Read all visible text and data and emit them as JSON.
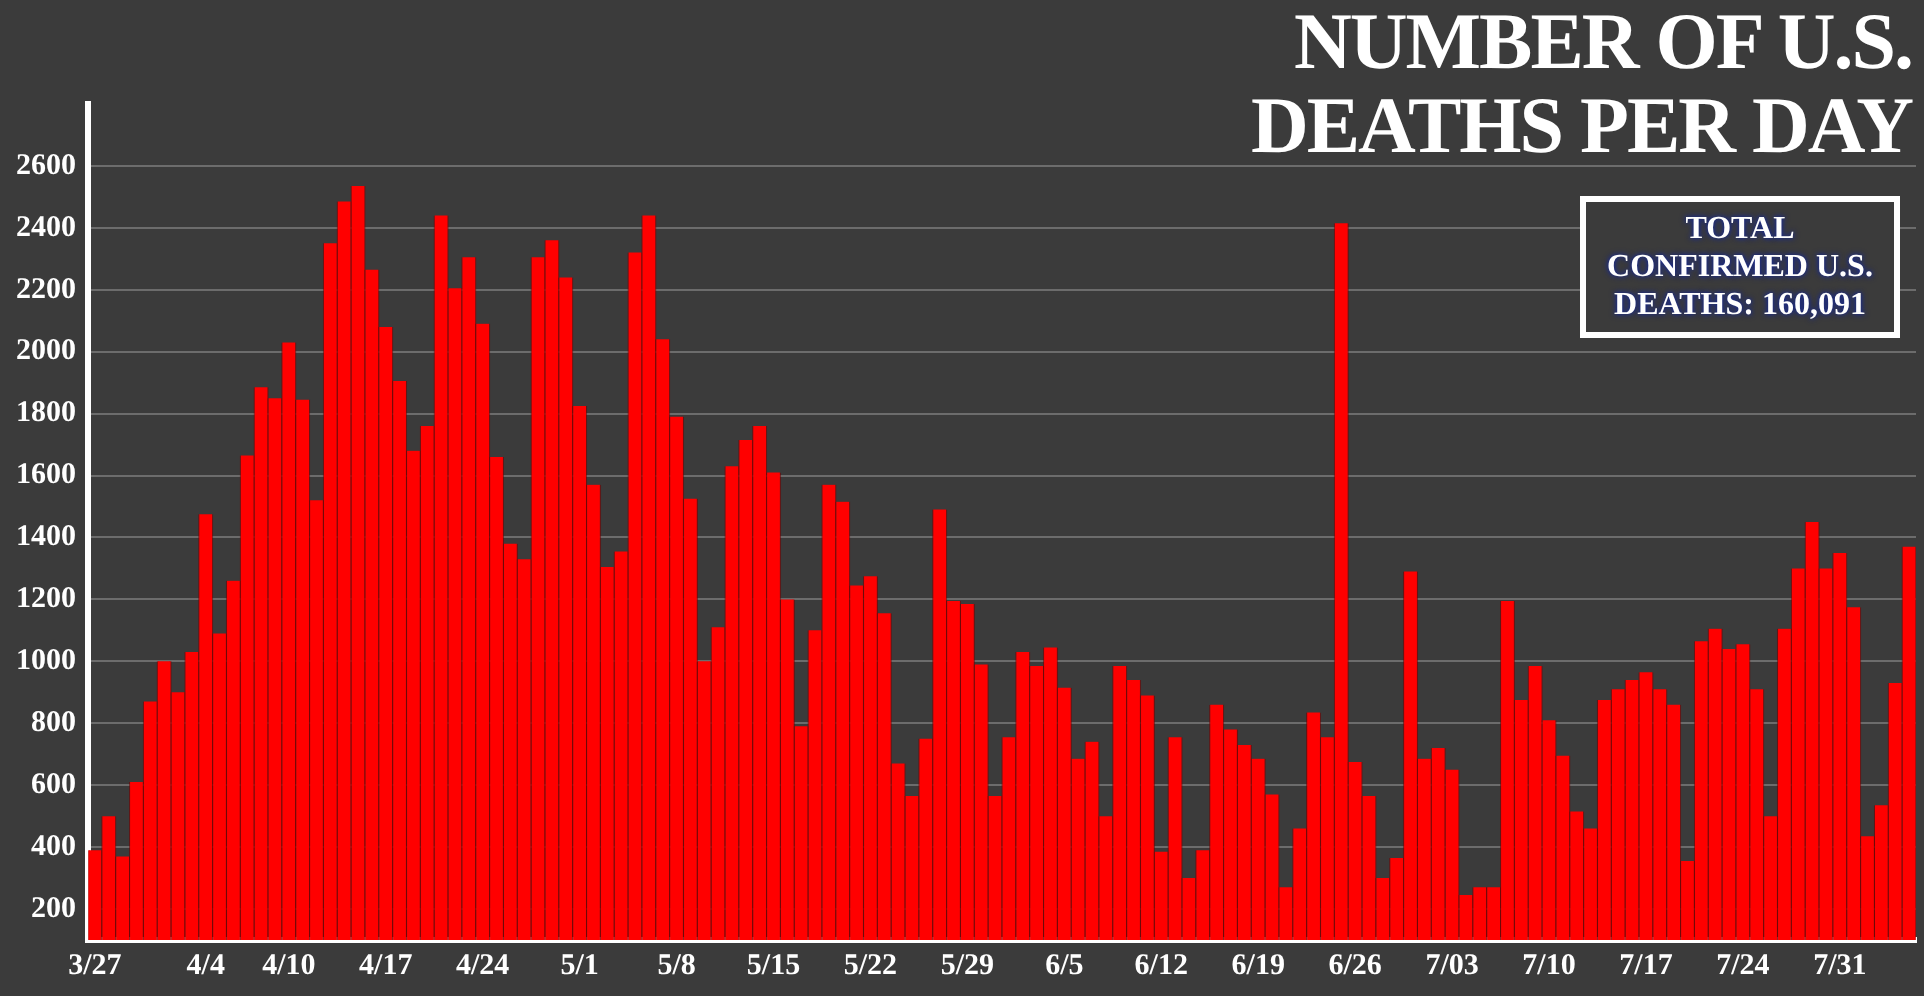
{
  "chart_data": {
    "type": "bar",
    "title": "NUMBER OF U.S. DEATHS PER DAY",
    "annotations": [
      "TOTAL CONFIRMED U.S. DEATHS: 160,091"
    ],
    "categories": [
      "3/27",
      null,
      null,
      null,
      null,
      null,
      null,
      null,
      "4/4",
      null,
      null,
      null,
      null,
      null,
      "4/10",
      null,
      null,
      null,
      null,
      null,
      null,
      "4/17",
      null,
      null,
      null,
      null,
      null,
      null,
      "4/24",
      null,
      null,
      null,
      null,
      null,
      null,
      "5/1",
      null,
      null,
      null,
      null,
      null,
      null,
      "5/8",
      null,
      null,
      null,
      null,
      null,
      null,
      "5/15",
      null,
      null,
      null,
      null,
      null,
      null,
      "5/22",
      null,
      null,
      null,
      null,
      null,
      null,
      "5/29",
      null,
      null,
      null,
      null,
      null,
      null,
      "6/5",
      null,
      null,
      null,
      null,
      null,
      null,
      "6/12",
      null,
      null,
      null,
      null,
      null,
      null,
      "6/19",
      null,
      null,
      null,
      null,
      null,
      null,
      "6/26",
      null,
      null,
      null,
      null,
      null,
      null,
      "7/03",
      null,
      null,
      null,
      null,
      null,
      null,
      "7/10",
      null,
      null,
      null,
      null,
      null,
      null,
      "7/17",
      null,
      null,
      null,
      null,
      null,
      null,
      "7/24",
      null,
      null,
      null,
      null,
      null,
      null,
      "7/31",
      null,
      null,
      null,
      null,
      null
    ],
    "values": [
      390,
      500,
      370,
      610,
      870,
      1000,
      900,
      1030,
      1475,
      1090,
      1260,
      1665,
      1885,
      1850,
      2030,
      1845,
      1520,
      2350,
      2485,
      2535,
      2265,
      2080,
      1905,
      1680,
      1760,
      2440,
      2205,
      2305,
      2090,
      1660,
      1380,
      1330,
      2305,
      2360,
      2240,
      1825,
      1570,
      1305,
      1355,
      2320,
      2440,
      2040,
      1790,
      1525,
      1000,
      1110,
      1630,
      1715,
      1760,
      1610,
      1200,
      790,
      1100,
      1570,
      1515,
      1245,
      1275,
      1155,
      670,
      565,
      750,
      1490,
      1195,
      1185,
      990,
      565,
      755,
      1030,
      985,
      1045,
      915,
      685,
      740,
      500,
      985,
      940,
      890,
      385,
      755,
      300,
      390,
      860,
      780,
      730,
      685,
      570,
      270,
      460,
      835,
      755,
      2415,
      675,
      565,
      300,
      365,
      1290,
      685,
      720,
      650,
      245,
      270,
      270,
      1195,
      875,
      985,
      810,
      695,
      515,
      460,
      875,
      910,
      940,
      965,
      910,
      860,
      355,
      1065,
      1105,
      1040,
      1055,
      910,
      500,
      1105,
      1300,
      1450,
      1300,
      1350,
      1175,
      435,
      535,
      930,
      1370
    ],
    "color": "#ff0000",
    "ylim": [
      100,
      2800
    ],
    "yticks": [
      200,
      400,
      600,
      800,
      1000,
      1200,
      1400,
      1600,
      1800,
      2000,
      2200,
      2400,
      2600
    ],
    "grid": "y",
    "legend": false
  }
}
